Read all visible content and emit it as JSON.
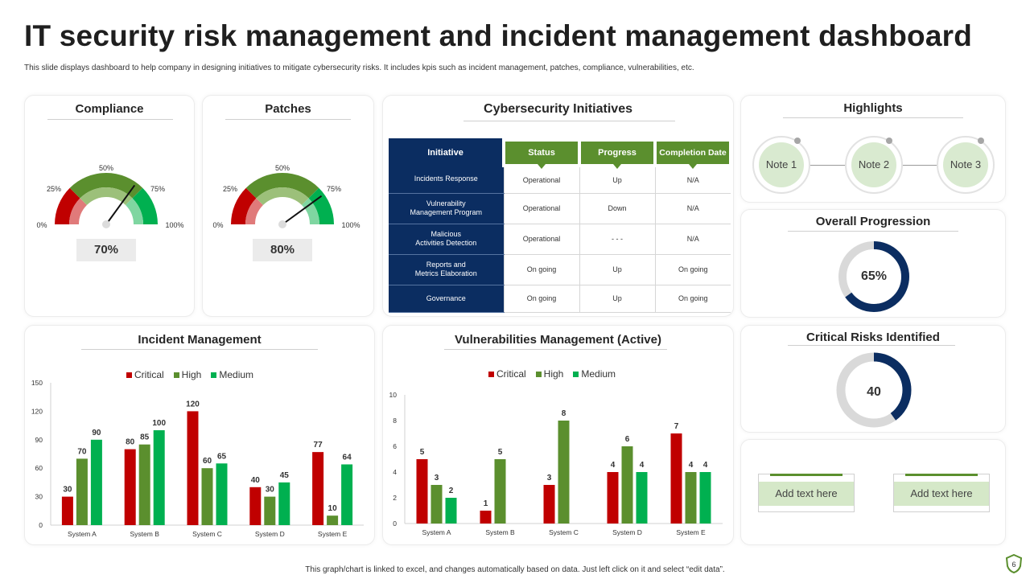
{
  "header": {
    "title": "IT security risk management and incident management dashboard",
    "subtitle": "This slide displays dashboard to help company in designing initiatives to mitigate cybersecurity risks. It includes kpis such as incident management,  patches, compliance, vulnerabilities, etc."
  },
  "colors": {
    "critical": "#c00000",
    "high": "#5b8f2e",
    "medium": "#00b050",
    "navy": "#0b2d61",
    "gray": "#d9d9d9"
  },
  "compliance": {
    "title": "Compliance",
    "labels": [
      "0%",
      "25%",
      "50%",
      "75%",
      "100%"
    ],
    "value_text": "70%",
    "value": 70
  },
  "patches": {
    "title": "Patches",
    "labels": [
      "0%",
      "25%",
      "50%",
      "75%",
      "100%"
    ],
    "value_text": "80%",
    "value": 80
  },
  "initiatives": {
    "title": "Cybersecurity Initiatives",
    "headers": [
      "Initiative",
      "Status",
      "Progress",
      "Completion Date"
    ],
    "rows": [
      {
        "initiative": "Incidents Response",
        "status": "Operational",
        "progress": "Up",
        "date": "N/A"
      },
      {
        "initiative": "Vulnerability\nManagement Program",
        "status": "Operational",
        "progress": "Down",
        "date": "N/A"
      },
      {
        "initiative": "Malicious\nActivities Detection",
        "status": "Operational",
        "progress": "- - -",
        "date": "N/A"
      },
      {
        "initiative": "Reports and\nMetrics Elaboration",
        "status": "On going",
        "progress": "Up",
        "date": "On going"
      },
      {
        "initiative": "Governance",
        "status": "On going",
        "progress": "Up",
        "date": "On going"
      }
    ]
  },
  "highlights": {
    "title": "Highlights",
    "notes": [
      "Note 1",
      "Note 2",
      "Note 3"
    ]
  },
  "overall": {
    "title": "Overall Progression",
    "value_text": "65%",
    "value": 65
  },
  "critical_risks": {
    "title": "Critical Risks Identified",
    "value_text": "40",
    "value": 40
  },
  "text_boxes": [
    "Add text here",
    "Add text here"
  ],
  "footer": "This graph/chart is linked to excel, and changes automatically based on data. Just left click on it and select “edit data”.",
  "chart_data": [
    {
      "type": "bar",
      "title": "Incident Management",
      "categories": [
        "System A",
        "System B",
        "System C",
        "System D",
        "System E"
      ],
      "series": [
        {
          "name": "Critical",
          "values": [
            30,
            80,
            120,
            40,
            77
          ]
        },
        {
          "name": "High",
          "values": [
            70,
            85,
            60,
            30,
            10
          ]
        },
        {
          "name": "Medium",
          "values": [
            90,
            100,
            65,
            45,
            64
          ]
        }
      ],
      "ylim": [
        0,
        150
      ],
      "yticks": [
        "0",
        "30",
        "60",
        "90",
        "120",
        "150"
      ],
      "legend": "top"
    },
    {
      "type": "bar",
      "title": "Vulnerabilities Management (Active)",
      "categories": [
        "System A",
        "System B",
        "System C",
        "System D",
        "System E"
      ],
      "series": [
        {
          "name": "Critical",
          "values": [
            5,
            1,
            3,
            4,
            7
          ]
        },
        {
          "name": "High",
          "values": [
            3,
            5,
            8,
            6,
            4
          ]
        },
        {
          "name": "Medium",
          "values": [
            2,
            null,
            null,
            4,
            4
          ]
        }
      ],
      "ylim": [
        0,
        10
      ],
      "yticks": [
        "0",
        "2",
        "4",
        "6",
        "8",
        "10"
      ],
      "legend": "top"
    }
  ]
}
